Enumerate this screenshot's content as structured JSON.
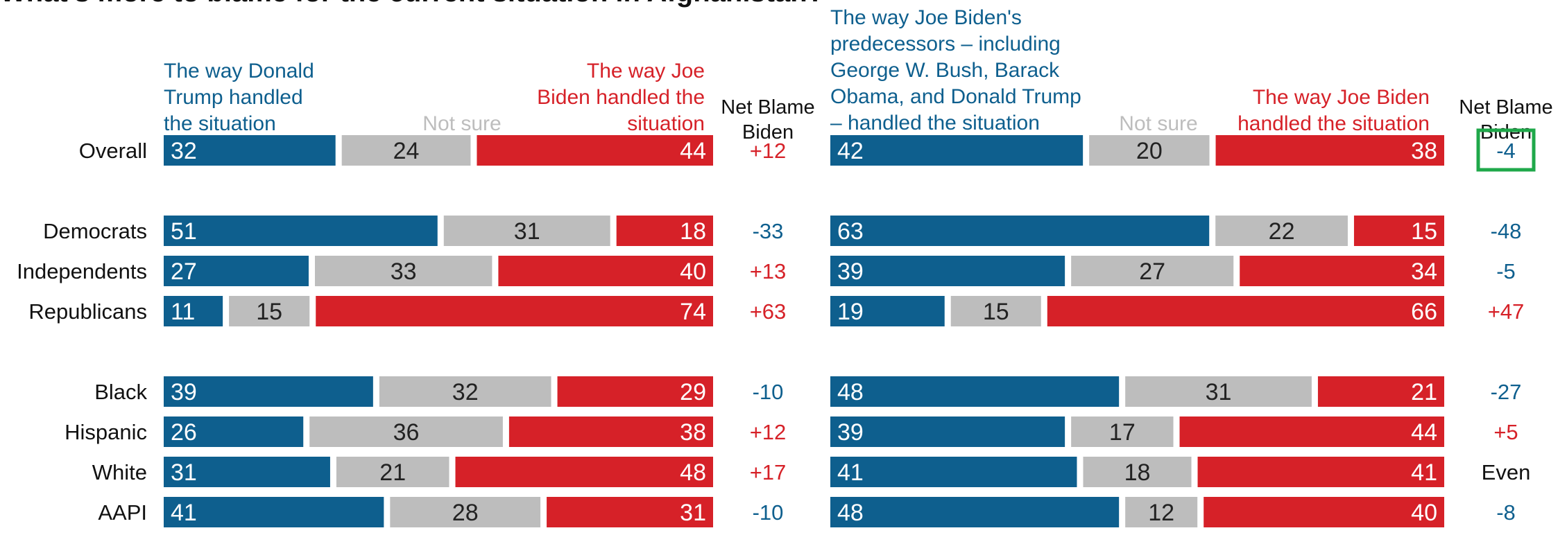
{
  "title": "What's more to blame for the current situation in Afghanistan?",
  "colors": {
    "trump": "#0e5f8e",
    "not_sure": "#bdbdbd",
    "biden": "#d62128",
    "highlight": "#1fa84a",
    "neutral": "#111111"
  },
  "chart_data": [
    {
      "type": "bar",
      "stacked": true,
      "orientation": "horizontal",
      "categories": [
        "Overall",
        "Democrats",
        "Independents",
        "Republicans",
        "Black",
        "Hispanic",
        "White",
        "AAPI"
      ],
      "series": [
        {
          "name": "The way Donald Trump handled the situation",
          "values": [
            32,
            51,
            27,
            11,
            39,
            26,
            31,
            41
          ]
        },
        {
          "name": "Not sure",
          "values": [
            24,
            31,
            33,
            15,
            32,
            36,
            21,
            28
          ]
        },
        {
          "name": "The way Joe Biden handled the situation",
          "values": [
            44,
            18,
            40,
            74,
            29,
            38,
            48,
            31
          ]
        }
      ],
      "net_header": "Net Blame Biden",
      "net": [
        "+12",
        "-33",
        "+13",
        "+63",
        "-10",
        "+12",
        "+17",
        "-10"
      ],
      "xlim": [
        0,
        100
      ]
    },
    {
      "type": "bar",
      "stacked": true,
      "orientation": "horizontal",
      "categories": [
        "Overall",
        "Democrats",
        "Independents",
        "Republicans",
        "Black",
        "Hispanic",
        "White",
        "AAPI"
      ],
      "series": [
        {
          "name": "The way Joe Biden's predecessors – including George W. Bush, Barack Obama, and Donald Trump – handled the situation",
          "values": [
            42,
            63,
            39,
            19,
            48,
            39,
            41,
            48
          ]
        },
        {
          "name": "Not sure",
          "values": [
            20,
            22,
            27,
            15,
            31,
            17,
            18,
            12
          ]
        },
        {
          "name": "The way Joe Biden handled the situation",
          "values": [
            38,
            15,
            34,
            66,
            21,
            44,
            41,
            40
          ]
        }
      ],
      "net_header": "Net Blame Biden",
      "net": [
        "-4",
        "-48",
        "-5",
        "+47",
        "-27",
        "+5",
        "Even",
        "-8"
      ],
      "highlighted": "Overall",
      "xlim": [
        0,
        100
      ]
    }
  ],
  "panels": [
    {
      "left_header": [
        "The way Donald",
        "Trump handled",
        "the situation"
      ],
      "not_sure": "Not sure",
      "right_header": [
        "The way Joe",
        "Biden handled the",
        "situation"
      ],
      "net_header": [
        "Net Blame",
        "Biden"
      ]
    },
    {
      "left_header": [
        "The way Joe Biden's",
        "predecessors – including",
        "George W. Bush, Barack",
        "Obama, and Donald Trump",
        "– handled the situation"
      ],
      "not_sure": "Not sure",
      "right_header": [
        "The way Joe Biden",
        "handled the situation"
      ],
      "net_header": [
        "Net Blame",
        "Biden"
      ]
    }
  ]
}
